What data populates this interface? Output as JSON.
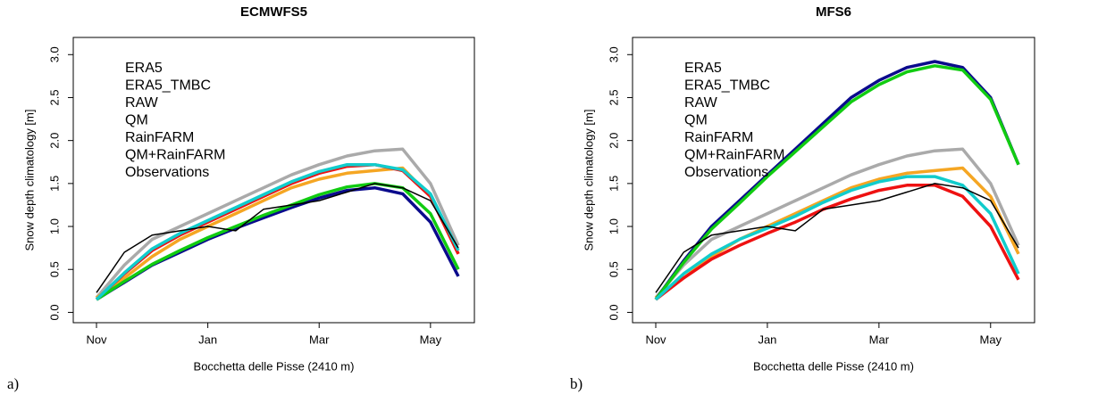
{
  "chart_data": [
    {
      "type": "line",
      "title": "ECMWFS5",
      "panel_label": "a)",
      "x_label": "Bocchetta delle Pisse (2410 m)",
      "y_label": "Snow depth climatology [m]",
      "categories": [
        "Nov",
        null,
        null,
        null,
        "Jan",
        null,
        null,
        null,
        "Mar",
        null,
        null,
        null,
        "May",
        null
      ],
      "ylim": [
        -0.12,
        3.2
      ],
      "yticks": [
        {
          "value": 0,
          "label": "0.0"
        },
        0.5,
        {
          "value": 1,
          "label": "1.0"
        },
        1.5,
        {
          "value": 2,
          "label": "2.0"
        },
        2.5,
        {
          "value": 3,
          "label": "3.0"
        }
      ],
      "legend": "top-left",
      "series": [
        {
          "name": "ERA5",
          "color": "#aaaaaa",
          "values": [
            0.17,
            0.55,
            0.85,
            1.0,
            1.15,
            1.3,
            1.45,
            1.6,
            1.72,
            1.82,
            1.88,
            1.9,
            1.5,
            0.78
          ]
        },
        {
          "name": "ERA5_TMBC",
          "color": "#f5a623",
          "values": [
            0.17,
            0.4,
            0.65,
            0.85,
            1.0,
            1.15,
            1.3,
            1.45,
            1.55,
            1.62,
            1.65,
            1.68,
            1.35,
            0.68
          ]
        },
        {
          "name": "RAW",
          "color": "#0a0a8c",
          "values": [
            0.15,
            0.35,
            0.55,
            0.7,
            0.85,
            0.98,
            1.1,
            1.22,
            1.33,
            1.42,
            1.45,
            1.38,
            1.05,
            0.42
          ]
        },
        {
          "name": "QM",
          "color": "#ee1111",
          "values": [
            0.15,
            0.45,
            0.72,
            0.9,
            1.05,
            1.2,
            1.35,
            1.5,
            1.62,
            1.7,
            1.72,
            1.65,
            1.35,
            0.68
          ]
        },
        {
          "name": "RainFARM",
          "color": "#11cc11",
          "values": [
            0.15,
            0.36,
            0.56,
            0.72,
            0.87,
            1.0,
            1.13,
            1.25,
            1.37,
            1.46,
            1.5,
            1.45,
            1.15,
            0.5
          ]
        },
        {
          "name": "QM+RainFARM",
          "color": "#11cccc",
          "values": [
            0.15,
            0.46,
            0.74,
            0.92,
            1.07,
            1.22,
            1.37,
            1.52,
            1.64,
            1.72,
            1.72,
            1.66,
            1.38,
            0.72
          ]
        },
        {
          "name": "Observations",
          "color": "#000000",
          "values": [
            0.23,
            0.7,
            0.9,
            0.95,
            1.0,
            0.95,
            1.2,
            1.25,
            1.3,
            1.4,
            1.5,
            1.45,
            1.3,
            0.75
          ]
        }
      ]
    },
    {
      "type": "line",
      "title": "MFS6",
      "panel_label": "b)",
      "x_label": "Bocchetta delle Pisse (2410 m)",
      "y_label": "Snow depth climatology [m]",
      "categories": [
        "Nov",
        null,
        null,
        null,
        "Jan",
        null,
        null,
        null,
        "Mar",
        null,
        null,
        null,
        "May",
        null
      ],
      "ylim": [
        -0.12,
        3.2
      ],
      "yticks": [
        {
          "value": 0,
          "label": "0.0"
        },
        0.5,
        {
          "value": 1,
          "label": "1.0"
        },
        1.5,
        {
          "value": 2,
          "label": "2.0"
        },
        2.5,
        {
          "value": 3,
          "label": "3.0"
        }
      ],
      "legend": "top-left",
      "series": [
        {
          "name": "ERA5",
          "color": "#aaaaaa",
          "values": [
            0.17,
            0.55,
            0.85,
            1.0,
            1.15,
            1.3,
            1.45,
            1.6,
            1.72,
            1.82,
            1.88,
            1.9,
            1.5,
            0.78
          ]
        },
        {
          "name": "ERA5_TMBC",
          "color": "#f5a623",
          "values": [
            0.17,
            0.4,
            0.65,
            0.85,
            1.0,
            1.15,
            1.3,
            1.45,
            1.55,
            1.62,
            1.65,
            1.68,
            1.35,
            0.68
          ]
        },
        {
          "name": "RAW",
          "color": "#0a0a8c",
          "values": [
            0.15,
            0.6,
            1.0,
            1.3,
            1.6,
            1.9,
            2.2,
            2.5,
            2.7,
            2.85,
            2.92,
            2.85,
            2.5,
            1.72
          ]
        },
        {
          "name": "QM",
          "color": "#ee1111",
          "values": [
            0.15,
            0.4,
            0.62,
            0.78,
            0.92,
            1.05,
            1.2,
            1.32,
            1.42,
            1.48,
            1.48,
            1.35,
            1.0,
            0.38
          ]
        },
        {
          "name": "RainFARM",
          "color": "#11cc11",
          "values": [
            0.15,
            0.58,
            0.97,
            1.27,
            1.58,
            1.87,
            2.16,
            2.45,
            2.65,
            2.8,
            2.87,
            2.82,
            2.48,
            1.72
          ]
        },
        {
          "name": "QM+RainFARM",
          "color": "#11cccc",
          "values": [
            0.15,
            0.45,
            0.68,
            0.85,
            0.98,
            1.12,
            1.28,
            1.42,
            1.52,
            1.58,
            1.58,
            1.48,
            1.15,
            0.45
          ]
        },
        {
          "name": "Observations",
          "color": "#000000",
          "values": [
            0.23,
            0.7,
            0.9,
            0.95,
            1.0,
            0.95,
            1.2,
            1.25,
            1.3,
            1.4,
            1.5,
            1.45,
            1.3,
            0.75
          ]
        }
      ]
    }
  ]
}
